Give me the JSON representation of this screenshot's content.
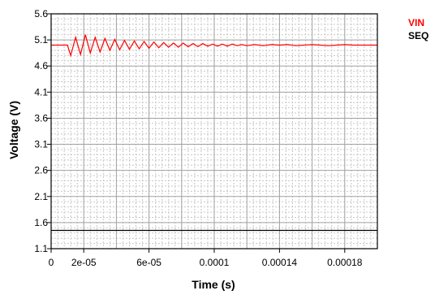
{
  "chart_data": {
    "type": "line",
    "title": "",
    "xlabel": "Time (s)",
    "ylabel": "Voltage (V)",
    "xlim": [
      0,
      0.0002
    ],
    "ylim": [
      1.1,
      5.6
    ],
    "x_ticks": [
      0,
      2e-05,
      6e-05,
      0.0001,
      0.00014,
      0.00018
    ],
    "x_tick_labels": [
      "0",
      "2e-05",
      "6e-05",
      "0.0001",
      "0.00014",
      "0.00018"
    ],
    "y_ticks": [
      1.1,
      1.6,
      2.1,
      2.6,
      3.1,
      3.6,
      4.1,
      4.6,
      5.1,
      5.6
    ],
    "y_tick_labels": [
      "1.1",
      "1.6",
      "2.1",
      "2.6",
      "3.1",
      "3.6",
      "4.1",
      "4.6",
      "5.1",
      "5.6"
    ],
    "grid": true,
    "legend_position": "top-right outside",
    "series": [
      {
        "name": "VIN",
        "color": "#ff0000",
        "x": [
          0,
          1e-05,
          1.2e-05,
          1.5e-05,
          1.8e-05,
          2.1e-05,
          2.4e-05,
          2.7e-05,
          3e-05,
          3.3e-05,
          3.6e-05,
          3.9e-05,
          4.2e-05,
          4.5e-05,
          4.8e-05,
          5.1e-05,
          5.4e-05,
          5.7e-05,
          6e-05,
          6.3e-05,
          6.6e-05,
          6.9e-05,
          7.2e-05,
          7.5e-05,
          7.8e-05,
          8.1e-05,
          8.4e-05,
          8.7e-05,
          9e-05,
          9.3e-05,
          9.6e-05,
          9.9e-05,
          0.000102,
          0.000105,
          0.000108,
          0.000111,
          0.000114,
          0.000117,
          0.00012,
          0.000125,
          0.00013,
          0.000135,
          0.00014,
          0.000145,
          0.00015,
          0.000155,
          0.00016,
          0.000165,
          0.00017,
          0.000175,
          0.00018,
          0.000185,
          0.00019,
          0.000195,
          0.0002
        ],
        "y": [
          5.0,
          5.0,
          4.8,
          5.15,
          4.82,
          5.2,
          4.85,
          5.15,
          4.87,
          5.13,
          4.9,
          5.11,
          4.91,
          5.09,
          4.92,
          5.08,
          4.93,
          5.07,
          4.94,
          5.06,
          4.95,
          5.05,
          4.96,
          5.04,
          4.96,
          5.04,
          4.97,
          5.03,
          4.97,
          5.03,
          4.98,
          5.02,
          4.98,
          5.02,
          4.98,
          5.02,
          4.99,
          5.01,
          4.99,
          5.01,
          4.99,
          5.01,
          5.0,
          5.01,
          4.99,
          5.0,
          5.01,
          5.0,
          4.99,
          5.0,
          5.01,
          5.0,
          5.0,
          5.0,
          5.0
        ]
      },
      {
        "name": "SEQ",
        "color": "#000000",
        "x": [
          0,
          0.0002
        ],
        "y": [
          1.45,
          1.45
        ]
      }
    ]
  }
}
